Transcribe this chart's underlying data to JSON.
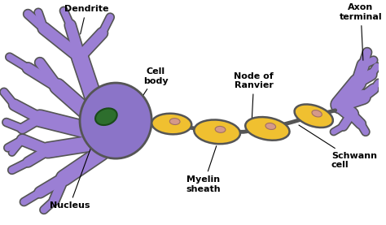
{
  "background_color": "#ffffff",
  "cell_body_color": "#8b74c8",
  "cell_body_outline": "#555555",
  "dendrite_color": "#9b7fd4",
  "axon_terminal_color": "#9b7fd4",
  "nucleus_color": "#2d6e2d",
  "nucleus_outline": "#1a4a1a",
  "myelin_color": "#f0c030",
  "myelin_outline": "#555555",
  "schwann_nucleus_color": "#d4998a",
  "text_color": "#000000",
  "labels": {
    "dendrite": "Dendrite",
    "cell_body": "Cell\nbody",
    "nucleus": "Nucleus",
    "myelin_sheath": "Myelin\nsheath",
    "node_of_ranvier": "Node of\nRanvier",
    "schwann_cell": "Schwann\ncell",
    "axon_terminal": "Axon\nterminal"
  },
  "figsize": [
    4.74,
    2.77
  ],
  "dpi": 100
}
